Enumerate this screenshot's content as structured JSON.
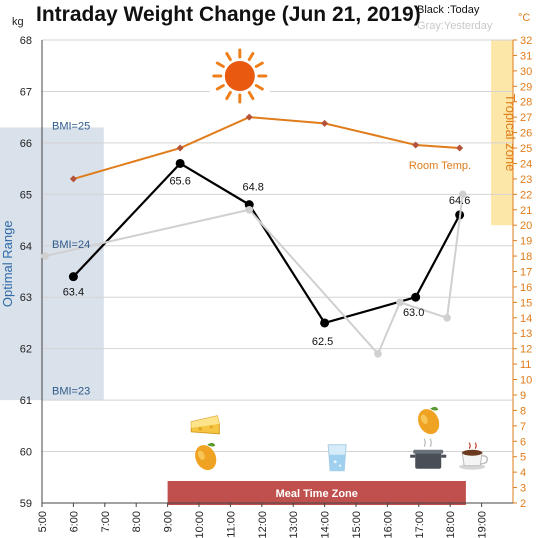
{
  "chart_data": {
    "type": "line",
    "title": "Intraday Weight Change (Jun 21, 2019)",
    "legend": {
      "today": "Black :Today",
      "yesterday": "Gray:Yesterday",
      "placement": "top-right"
    },
    "left_axis": {
      "unit": "kg",
      "range": [
        59,
        68
      ],
      "ticks": [
        59,
        60,
        61,
        62,
        63,
        64,
        65,
        66,
        67,
        68
      ]
    },
    "right_axis": {
      "unit": "°C",
      "range": [
        2,
        32
      ],
      "ticks": [
        2,
        3,
        4,
        5,
        6,
        7,
        8,
        9,
        10,
        11,
        12,
        13,
        14,
        15,
        16,
        17,
        18,
        19,
        20,
        21,
        22,
        23,
        24,
        25,
        26,
        27,
        28,
        29,
        30,
        31,
        32
      ]
    },
    "x_axis": {
      "range": [
        5,
        20
      ],
      "ticks": [
        5,
        6,
        7,
        8,
        9,
        10,
        11,
        12,
        13,
        14,
        15,
        16,
        17,
        18,
        19
      ],
      "tick_labels": [
        "5:00",
        "6:00",
        "7:00",
        "8:00",
        "9:00",
        "10:00",
        "11:00",
        "12:00",
        "13:00",
        "14:00",
        "15:00",
        "16:00",
        "17:00",
        "18:00",
        "19:00"
      ]
    },
    "grid": true,
    "series": [
      {
        "key": "today",
        "color": "#000000",
        "points": [
          {
            "x": 6.0,
            "y": 63.4,
            "label": "63.4"
          },
          {
            "x": 9.4,
            "y": 65.6,
            "label": "65.6"
          },
          {
            "x": 11.6,
            "y": 64.8,
            "label": "64.8"
          },
          {
            "x": 14.0,
            "y": 62.5,
            "label": "62.5"
          },
          {
            "x": 16.9,
            "y": 63.0,
            "label": "63.0"
          },
          {
            "x": 18.3,
            "y": 64.6,
            "label": "64.6"
          }
        ]
      },
      {
        "key": "yesterday",
        "color": "#d0d0d0",
        "points": [
          {
            "x": 5.1,
            "y": 63.8
          },
          {
            "x": 11.6,
            "y": 64.7
          },
          {
            "x": 15.7,
            "y": 61.9
          },
          {
            "x": 16.4,
            "y": 62.9
          },
          {
            "x": 17.9,
            "y": 62.6
          },
          {
            "x": 18.4,
            "y": 65.0
          }
        ]
      },
      {
        "key": "room_temp",
        "axis": "right",
        "color": "#e07c1a",
        "marker_color": "#b5533a",
        "label": "Room Temp.",
        "points": [
          {
            "x": 6.0,
            "y": 23
          },
          {
            "x": 9.4,
            "y": 25
          },
          {
            "x": 11.6,
            "y": 27
          },
          {
            "x": 14.0,
            "y": 26.6
          },
          {
            "x": 16.9,
            "y": 25.2
          },
          {
            "x": 18.3,
            "y": 25
          }
        ]
      }
    ],
    "bands": {
      "optimal": {
        "label": "Optimal Range",
        "from_kg": 61,
        "to_kg": 66.3,
        "color": "#d9e1ea",
        "bmi_labels": [
          {
            "text": "BMI=25",
            "kg": 66.2
          },
          {
            "text": "BMI=24",
            "kg": 63.9
          },
          {
            "text": "BMI=23",
            "kg": 61.05
          }
        ]
      },
      "tropical": {
        "label": "Tropical zone",
        "from_c": 20,
        "to_c": 32,
        "color": "#fde7a8"
      },
      "meal": {
        "label": "Meal Time Zone",
        "from_h": 9,
        "to_h": 18.5,
        "color": "#c0504d"
      }
    },
    "icons": [
      {
        "name": "sun-icon",
        "x": 11.3,
        "y_kg": 67.3
      },
      {
        "name": "cheese-cake-icon",
        "x": 10.2,
        "y_kg": 60.5
      },
      {
        "name": "mango-icon",
        "x": 10.2,
        "y_kg": 59.9
      },
      {
        "name": "water-glass-icon",
        "x": 14.4,
        "y_kg": 59.9
      },
      {
        "name": "mango-icon",
        "x": 17.3,
        "y_kg": 60.6
      },
      {
        "name": "cooking-pot-icon",
        "x": 17.3,
        "y_kg": 59.9
      },
      {
        "name": "coffee-cup-icon",
        "x": 18.7,
        "y_kg": 59.9
      }
    ]
  }
}
